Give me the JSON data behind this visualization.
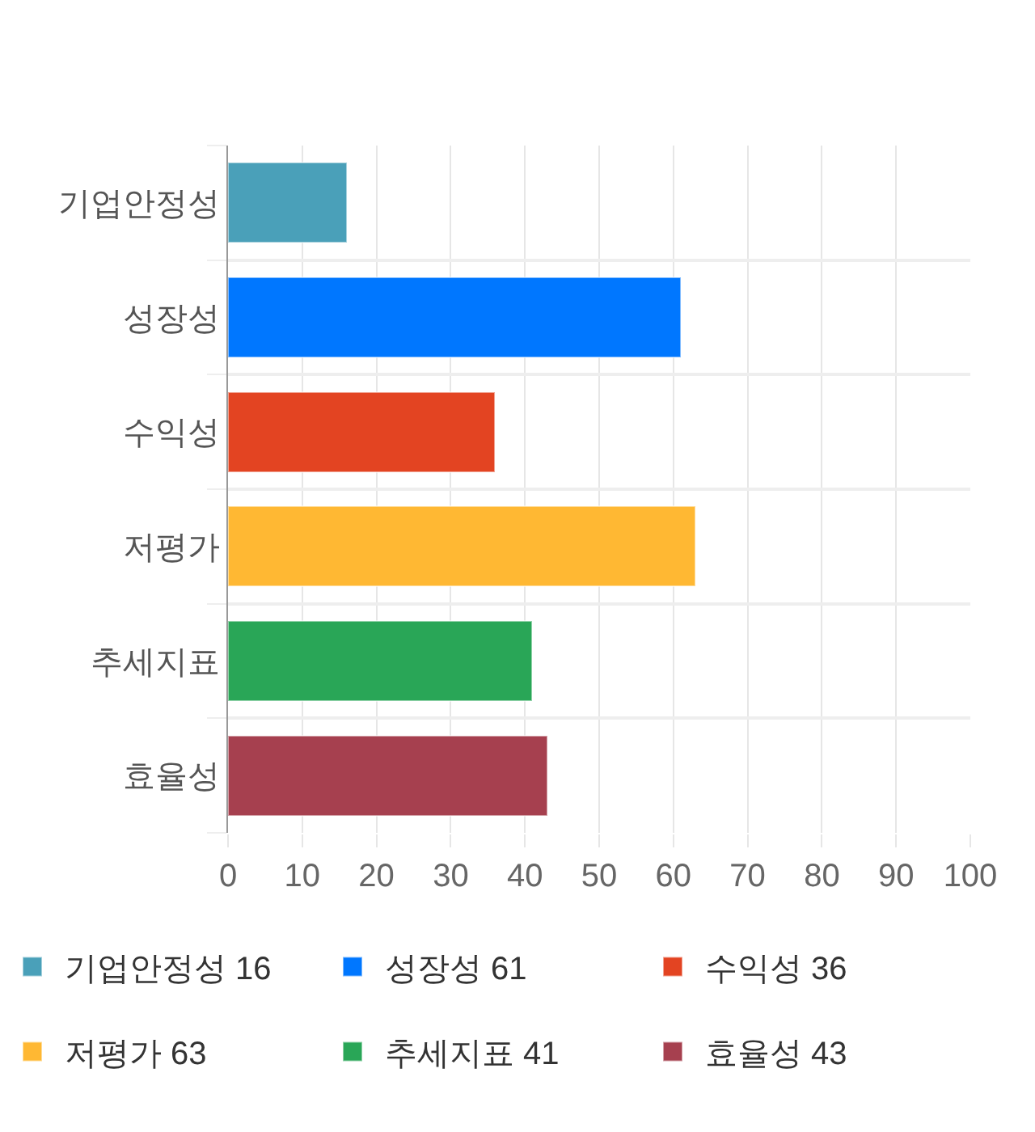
{
  "chart_data": {
    "type": "bar",
    "orientation": "horizontal",
    "stacked": true,
    "categories": [
      "기업안정성",
      "성장성",
      "수익성",
      "저평가",
      "추세지표",
      "효율성"
    ],
    "series": [
      {
        "name": "기업안정성 16",
        "color": "#4aa0b9",
        "values": [
          16,
          null,
          null,
          null,
          null,
          null
        ]
      },
      {
        "name": "성장성 61",
        "color": "#0077ff",
        "values": [
          null,
          61,
          null,
          null,
          null,
          null
        ]
      },
      {
        "name": "수익성 36",
        "color": "#e34422",
        "values": [
          null,
          null,
          36,
          null,
          null,
          null
        ]
      },
      {
        "name": "저평가 63",
        "color": "#ffb833",
        "values": [
          null,
          null,
          null,
          63,
          null,
          null
        ]
      },
      {
        "name": "추세지표 41",
        "color": "#29a657",
        "values": [
          null,
          null,
          null,
          null,
          41,
          null
        ]
      },
      {
        "name": "효율성 43",
        "color": "#a6404f",
        "values": [
          null,
          null,
          null,
          null,
          null,
          43
        ]
      }
    ],
    "xlim": [
      0,
      100
    ],
    "xticks": [
      0,
      10,
      20,
      30,
      40,
      50,
      60,
      70,
      80,
      90,
      100
    ],
    "grid": true,
    "legend": "bottom"
  }
}
